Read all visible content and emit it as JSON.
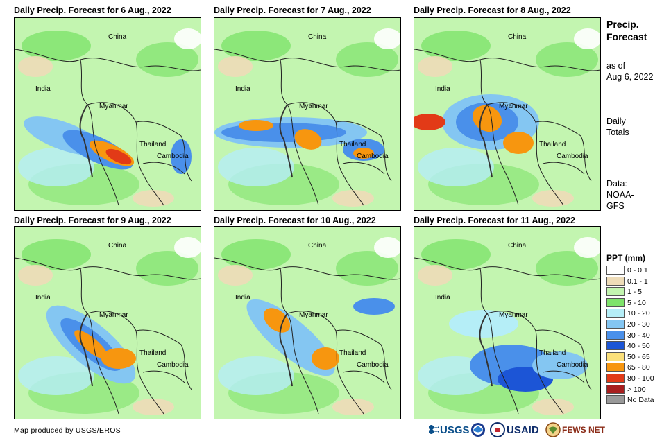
{
  "panels": [
    {
      "title": "Daily Precip. Forecast for 6 Aug., 2022",
      "labels": [
        "China",
        "India",
        "Myanmar",
        "Thailand",
        "Cambodia"
      ]
    },
    {
      "title": "Daily Precip. Forecast for 7 Aug., 2022",
      "labels": [
        "China",
        "India",
        "Myanmar",
        "Thailand",
        "Cambodia"
      ]
    },
    {
      "title": "Daily Precip. Forecast for 8 Aug., 2022",
      "labels": [
        "China",
        "India",
        "Myanmar",
        "Thailand",
        "Cambodia"
      ]
    },
    {
      "title": "Daily Precip. Forecast for 9 Aug., 2022",
      "labels": [
        "China",
        "India",
        "Myanmar",
        "Thailand",
        "Cambodia"
      ]
    },
    {
      "title": "Daily Precip. Forecast for 10 Aug., 2022",
      "labels": [
        "China",
        "India",
        "Myanmar",
        "Thailand",
        "Cambodia"
      ]
    },
    {
      "title": "Daily Precip. Forecast for 11 Aug., 2022",
      "labels": [
        "China",
        "India",
        "Myanmar",
        "Thailand",
        "Cambodia"
      ]
    }
  ],
  "side": {
    "title_line1": "Precip.",
    "title_line2": "Forecast",
    "asof_line1": "as of",
    "asof_line2": "Aug 6, 2022",
    "totals_line1": "Daily",
    "totals_line2": "Totals",
    "data_line1": "Data:",
    "data_line2": "NOAA-",
    "data_line3": "GFS"
  },
  "legend": {
    "title": "PPT (mm)",
    "items": [
      {
        "label": "0 - 0.1",
        "color": "#ffffff"
      },
      {
        "label": "0.1 - 1",
        "color": "#eedcb8"
      },
      {
        "label": "1 - 5",
        "color": "#c3f5b0"
      },
      {
        "label": "5 - 10",
        "color": "#7ee36b"
      },
      {
        "label": "10 - 20",
        "color": "#b5eef7"
      },
      {
        "label": "20 - 30",
        "color": "#84c6f2"
      },
      {
        "label": "30 - 40",
        "color": "#4a90ea"
      },
      {
        "label": "40 - 50",
        "color": "#1c55d6"
      },
      {
        "label": "50 - 65",
        "color": "#fbe07a"
      },
      {
        "label": "65 - 80",
        "color": "#f7960f"
      },
      {
        "label": "80 - 100",
        "color": "#e23a17"
      },
      {
        "label": "> 100",
        "color": "#a81e1e"
      },
      {
        "label": "No Data",
        "color": "#999999"
      }
    ]
  },
  "credit": "Map produced by USGS/EROS",
  "logos": {
    "usgs": "USGS",
    "usaid": "USAID",
    "fewsnet": "FEWS NET"
  }
}
